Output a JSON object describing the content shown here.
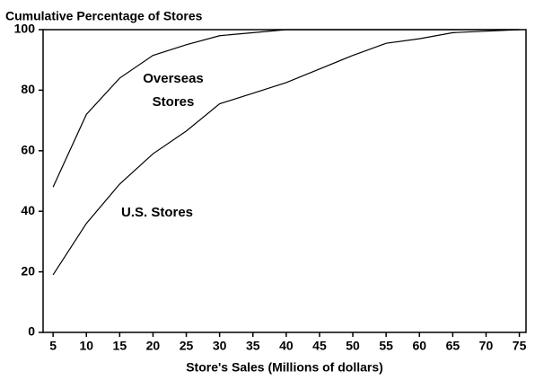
{
  "chart_data": {
    "type": "line",
    "title": "Cumulative Percentage of Stores",
    "x_label": "Store's Sales (Millions of dollars)",
    "x": [
      5,
      10,
      15,
      20,
      25,
      30,
      35,
      40,
      45,
      50,
      55,
      60,
      65,
      70,
      75
    ],
    "series": [
      {
        "name": "Overseas Stores",
        "color": "#000000",
        "values": [
          48,
          72,
          84,
          91.5,
          95,
          98,
          99,
          100,
          100,
          100,
          100,
          100,
          100,
          100,
          100
        ]
      },
      {
        "name": "U.S. Stores",
        "color": "#000000",
        "values": [
          19,
          36,
          49,
          59,
          66.5,
          75.5,
          79,
          82.5,
          87,
          91.5,
          95.5,
          97,
          99,
          99.5,
          100
        ]
      }
    ],
    "xlim": [
      3.5,
      76
    ],
    "xticks": [
      5,
      10,
      15,
      20,
      25,
      30,
      35,
      40,
      45,
      50,
      55,
      60,
      65,
      70,
      75
    ],
    "ylim": [
      0,
      100
    ],
    "yticks": [
      0,
      20,
      40,
      60,
      80,
      100
    ]
  }
}
